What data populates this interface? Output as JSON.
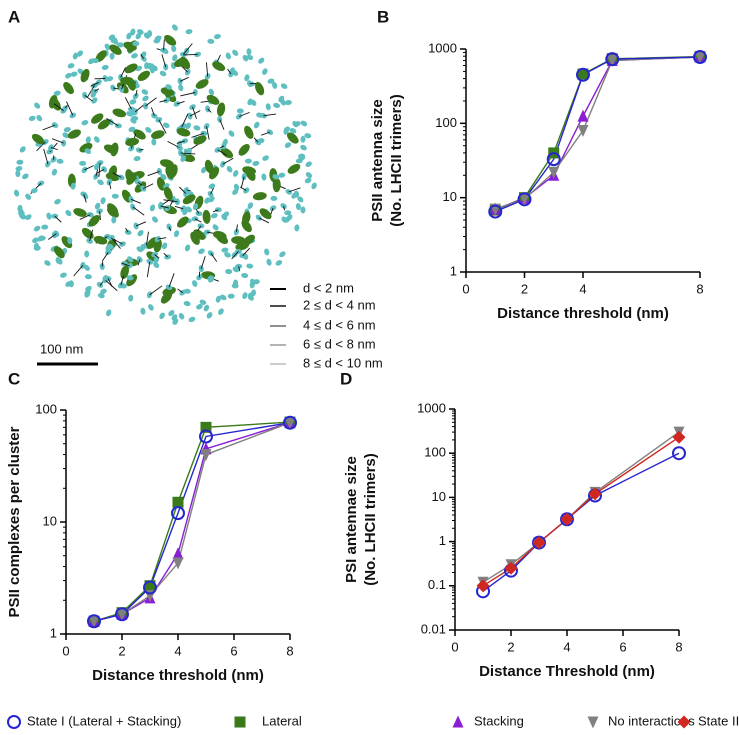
{
  "panel_a": {
    "panel": "A",
    "legend": [
      "d < 2 nm",
      "2 ≤ d < 4 nm",
      "4 ≤ d < 6 nm",
      "6 ≤ d < 8 nm",
      "8 ≤ d < 10 nm"
    ],
    "scale_bar": "100 nm"
  },
  "chart_data": [
    {
      "type": "line",
      "panel": "B",
      "log_y": true,
      "xlabel": "Distance threshold (nm)",
      "ylabel": [
        "PSII antenna size",
        "(No. LHCII trimers)"
      ],
      "x": [
        1,
        2,
        3,
        4,
        5,
        8
      ],
      "xlim": [
        0,
        8
      ],
      "xticks": [
        0,
        2,
        4,
        8
      ],
      "ylim": [
        1,
        1000
      ],
      "yticks": [
        1,
        10,
        100,
        1000
      ],
      "series": [
        {
          "name": "Lateral",
          "color": "#3a7a1a",
          "marker": "square",
          "values": [
            6.8,
            10,
            40,
            460,
            740,
            790
          ]
        },
        {
          "name": "Stacking",
          "color": "#8a1ed6",
          "marker": "triangle-up",
          "values": [
            7,
            9.8,
            20,
            125,
            700,
            780
          ]
        },
        {
          "name": "No interactions",
          "color": "#808080",
          "marker": "triangle-down",
          "values": [
            7,
            9.6,
            22,
            80,
            700,
            780
          ]
        },
        {
          "name": "State I (Lateral + Stacking)",
          "color": "#2626d0",
          "marker": "circle-open",
          "values": [
            6.5,
            9.5,
            33,
            450,
            730,
            780
          ]
        }
      ]
    },
    {
      "type": "line",
      "panel": "C",
      "log_y": true,
      "xlabel": "Distance threshold (nm)",
      "ylabel": [
        "PSII complexes per cluster"
      ],
      "x": [
        1,
        2,
        3,
        4,
        5,
        8
      ],
      "xlim": [
        0,
        8
      ],
      "xticks": [
        0,
        2,
        4,
        6,
        8
      ],
      "ylim": [
        1,
        100
      ],
      "yticks": [
        1,
        10,
        100
      ],
      "series": [
        {
          "name": "Lateral",
          "color": "#3a7a1a",
          "marker": "square",
          "values": [
            1.3,
            1.55,
            2.7,
            15,
            70,
            78
          ]
        },
        {
          "name": "Stacking",
          "color": "#8a1ed6",
          "marker": "triangle-up",
          "values": [
            1.3,
            1.5,
            2.1,
            5.2,
            45,
            77
          ]
        },
        {
          "name": "No interactions",
          "color": "#808080",
          "marker": "triangle-down",
          "values": [
            1.3,
            1.5,
            2.2,
            4.3,
            40,
            77
          ]
        },
        {
          "name": "State I (Lateral + Stacking)",
          "color": "#2626d0",
          "marker": "circle-open",
          "values": [
            1.3,
            1.5,
            2.6,
            12,
            58,
            77
          ]
        }
      ]
    },
    {
      "type": "line",
      "panel": "D",
      "log_y": true,
      "xlabel": "Distance Threshold (nm)",
      "ylabel": [
        "PSI antennae size",
        "(No. LHCII trimers)"
      ],
      "x": [
        1,
        2,
        3,
        4,
        5,
        8
      ],
      "xlim": [
        0,
        8
      ],
      "xticks": [
        0,
        2,
        4,
        6,
        8
      ],
      "ylim": [
        0.01,
        1000
      ],
      "yticks": [
        0.01,
        0.1,
        1,
        10,
        100,
        1000
      ],
      "series": [
        {
          "name": "No interactions",
          "color": "#808080",
          "marker": "triangle-down",
          "values": [
            0.12,
            0.3,
            0.95,
            3.2,
            13,
            300
          ]
        },
        {
          "name": "State I (Lateral + Stacking)",
          "color": "#2626d0",
          "marker": "circle-open",
          "values": [
            0.075,
            0.22,
            0.95,
            3.2,
            11,
            100
          ]
        },
        {
          "name": "State II",
          "color": "#d0281e",
          "marker": "diamond",
          "values": [
            0.1,
            0.25,
            0.95,
            3.2,
            12,
            230
          ]
        }
      ]
    }
  ]
}
